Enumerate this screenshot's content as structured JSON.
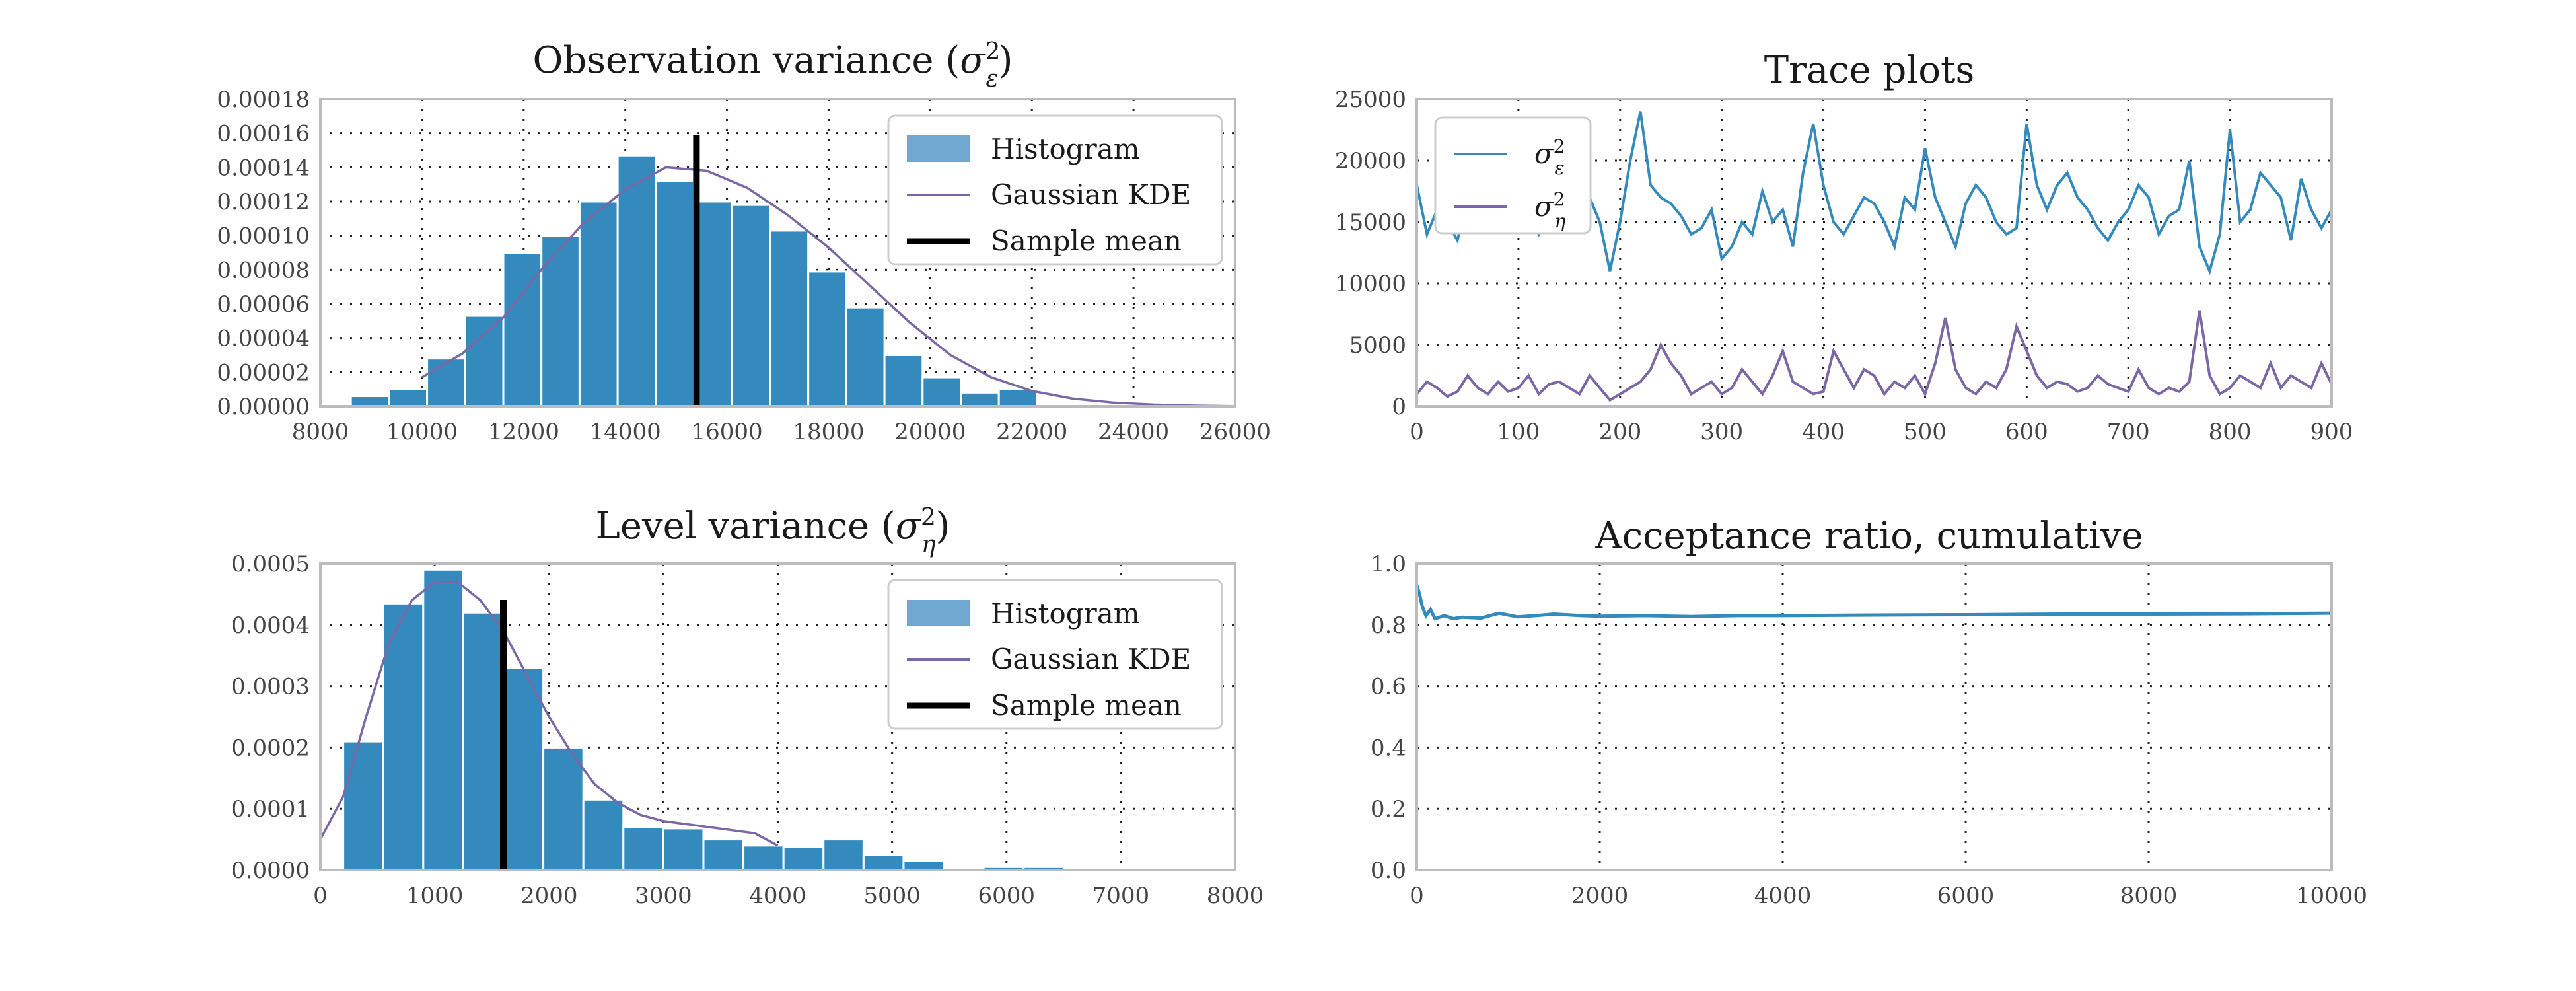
{
  "colors": {
    "histogram": "#348abd",
    "histogram_legend": "#6fa9d2",
    "kde": "#7a68a6",
    "mean": "#000000",
    "trace_eps": "#348abd",
    "trace_eta": "#7a68a6",
    "acceptance": "#348abd"
  },
  "chart_data": [
    {
      "id": "obs_hist",
      "type": "bar",
      "title": "Observation variance (σ²ε)",
      "title_main": "Observation variance (",
      "title_sym": "σ",
      "title_sup": "2",
      "title_sub": "ε",
      "title_end": ")",
      "xlim": [
        8000,
        26000
      ],
      "ylim": [
        0,
        0.00018
      ],
      "xticks": [
        8000,
        10000,
        12000,
        14000,
        16000,
        18000,
        20000,
        22000,
        24000,
        26000
      ],
      "yticks": [
        0,
        2e-05,
        4e-05,
        6e-05,
        8e-05,
        0.0001,
        0.00012,
        0.00014,
        0.00016,
        0.00018
      ],
      "ytick_labels": [
        "0.00000",
        "0.00002",
        "0.00004",
        "0.00006",
        "0.00008",
        "0.00010",
        "0.00012",
        "0.00014",
        "0.00016",
        "0.00018"
      ],
      "grid": true,
      "bin_edges": [
        8600,
        9350,
        10100,
        10850,
        11600,
        12350,
        13100,
        13850,
        14600,
        15350,
        16100,
        16850,
        17600,
        18350,
        19100,
        19850,
        20600,
        21350,
        22100,
        22850
      ],
      "values": [
        6e-06,
        1e-05,
        2.8e-05,
        5.3e-05,
        9e-05,
        0.0001,
        0.00012,
        0.000147,
        0.000132,
        0.00012,
        0.000118,
        0.000103,
        7.9e-05,
        5.8e-05,
        3e-05,
        1.7e-05,
        8e-06,
        1e-05,
        0,
        0
      ],
      "kde_x": [
        10000,
        10800,
        11600,
        12400,
        13200,
        14000,
        14800,
        15600,
        16400,
        17200,
        18000,
        18800,
        19600,
        20400,
        21200,
        22000,
        22800,
        23600,
        24400,
        25200,
        26000
      ],
      "kde_y": [
        1.7e-05,
        3.1e-05,
        5.2e-05,
        8.2e-05,
        0.000108,
        0.000127,
        0.00014,
        0.000138,
        0.000128,
        0.000112,
        9.3e-05,
        7.1e-05,
        4.9e-05,
        3e-05,
        1.7e-05,
        9e-06,
        4.5e-06,
        2.2e-06,
        1e-06,
        4e-07,
        1e-07
      ],
      "mean": 15400,
      "legend": [
        "Histogram",
        "Gaussian KDE",
        "Sample mean"
      ],
      "legend_position": "top-right"
    },
    {
      "id": "trace",
      "type": "line",
      "title": "Trace plots",
      "xlim": [
        0,
        900
      ],
      "ylim": [
        0,
        25000
      ],
      "xticks": [
        0,
        100,
        200,
        300,
        400,
        500,
        600,
        700,
        800,
        900
      ],
      "yticks": [
        0,
        5000,
        10000,
        15000,
        20000,
        25000
      ],
      "grid": true,
      "series": [
        {
          "name": "σ²ε",
          "x_step": 10,
          "values": [
            18000,
            14000,
            16000,
            15000,
            13500,
            17000,
            15000,
            14500,
            16500,
            15000,
            17500,
            16000,
            14000,
            15500,
            16000,
            15000,
            15500,
            17000,
            15000,
            11000,
            15000,
            20000,
            24000,
            18000,
            17000,
            16500,
            15500,
            14000,
            14500,
            16000,
            12000,
            13000,
            15000,
            14000,
            17500,
            15000,
            16000,
            13000,
            19000,
            23000,
            18000,
            15000,
            14000,
            15500,
            17000,
            16500,
            15000,
            13000,
            17000,
            16000,
            21000,
            17000,
            15000,
            13000,
            16500,
            18000,
            17000,
            15000,
            14000,
            14500,
            23000,
            18000,
            16000,
            18000,
            19000,
            17000,
            16000,
            14500,
            13500,
            15000,
            16000,
            18000,
            17000,
            14000,
            15500,
            16000,
            20000,
            13000,
            11000,
            14000,
            22500,
            15000,
            16000,
            19000,
            18000,
            17000,
            13500,
            18500,
            16000,
            14500,
            16000
          ],
          "name_main": "σ",
          "name_sup": "2",
          "name_sub": "ε"
        },
        {
          "name": "σ²η",
          "x_step": 10,
          "values": [
            1000,
            2000,
            1500,
            800,
            1200,
            2500,
            1500,
            1000,
            2000,
            1200,
            1500,
            2500,
            1000,
            1800,
            2000,
            1500,
            1000,
            2500,
            1500,
            500,
            1000,
            1500,
            2000,
            3000,
            5000,
            3500,
            2500,
            1000,
            1500,
            2000,
            1000,
            1500,
            3000,
            2000,
            1000,
            2500,
            4500,
            2000,
            1500,
            1000,
            1200,
            4500,
            3000,
            1500,
            3000,
            2500,
            1000,
            2000,
            1500,
            2500,
            1000,
            3500,
            7200,
            3000,
            1500,
            1000,
            2000,
            1500,
            3000,
            6500,
            4500,
            2500,
            1500,
            2000,
            1800,
            1200,
            1500,
            2500,
            1800,
            1500,
            1200,
            3000,
            1500,
            1000,
            1500,
            1200,
            2000,
            7800,
            2500,
            1000,
            1500,
            2500,
            2000,
            1500,
            3500,
            1500,
            2500,
            2000,
            1500,
            3500,
            1800
          ],
          "name_main": "σ",
          "name_sup": "2",
          "name_sub": "η"
        }
      ],
      "legend_position": "top-left"
    },
    {
      "id": "level_hist",
      "type": "bar",
      "title": "Level variance (σ²η)",
      "title_main": "Level variance (",
      "title_sym": "σ",
      "title_sup": "2",
      "title_sub": "η",
      "title_end": ")",
      "xlim": [
        0,
        8000
      ],
      "ylim": [
        0,
        0.0005
      ],
      "xticks": [
        0,
        1000,
        2000,
        3000,
        4000,
        5000,
        6000,
        7000,
        8000
      ],
      "yticks": [
        0,
        0.0001,
        0.0002,
        0.0003,
        0.0004,
        0.0005
      ],
      "ytick_labels": [
        "0.0000",
        "0.0001",
        "0.0002",
        "0.0003",
        "0.0004",
        "0.0005"
      ],
      "grid": true,
      "bin_edges": [
        200,
        550,
        900,
        1250,
        1600,
        1950,
        2300,
        2650,
        3000,
        3350,
        3700,
        4050,
        4400,
        4750,
        5100,
        5450,
        5800,
        6150,
        6500,
        6850
      ],
      "values": [
        0.00021,
        0.000435,
        0.00049,
        0.00042,
        0.00033,
        0.0002,
        0.000115,
        7e-05,
        6.8e-05,
        5e-05,
        4e-05,
        3.8e-05,
        5e-05,
        2.5e-05,
        1.5e-05,
        0,
        5e-06,
        5e-06,
        0
      ],
      "kde_x": [
        0,
        200,
        400,
        600,
        800,
        1000,
        1200,
        1400,
        1600,
        1800,
        2000,
        2200,
        2400,
        2600,
        2800,
        3000,
        3200,
        3400,
        3600,
        3800,
        4000
      ],
      "kde_y": [
        5e-05,
        0.00012,
        0.00025,
        0.00037,
        0.00044,
        0.00047,
        0.00047,
        0.00044,
        0.00039,
        0.00032,
        0.00025,
        0.00019,
        0.00014,
        0.00011,
        9e-05,
        8e-05,
        7.5e-05,
        7e-05,
        6.5e-05,
        6e-05,
        4e-05
      ],
      "mean": 1600,
      "legend": [
        "Histogram",
        "Gaussian KDE",
        "Sample mean"
      ],
      "legend_position": "top-right"
    },
    {
      "id": "acceptance",
      "type": "line",
      "title": "Acceptance ratio, cumulative",
      "xlim": [
        0,
        10000
      ],
      "ylim": [
        0,
        1
      ],
      "xticks": [
        0,
        2000,
        4000,
        6000,
        8000,
        10000
      ],
      "yticks": [
        0,
        0.2,
        0.4,
        0.6,
        0.8,
        1.0
      ],
      "ytick_labels": [
        "0.0",
        "0.2",
        "0.4",
        "0.6",
        "0.8",
        "1.0"
      ],
      "grid": true,
      "x": [
        0,
        30,
        60,
        100,
        150,
        200,
        300,
        400,
        500,
        700,
        900,
        1100,
        1300,
        1500,
        1800,
        2000,
        2500,
        3000,
        3500,
        4000,
        5000,
        6000,
        7000,
        8000,
        9000,
        10000
      ],
      "values": [
        0.93,
        0.9,
        0.86,
        0.83,
        0.85,
        0.82,
        0.83,
        0.82,
        0.825,
        0.822,
        0.838,
        0.826,
        0.83,
        0.835,
        0.83,
        0.828,
        0.83,
        0.827,
        0.83,
        0.83,
        0.832,
        0.833,
        0.835,
        0.835,
        0.836,
        0.838
      ]
    }
  ]
}
